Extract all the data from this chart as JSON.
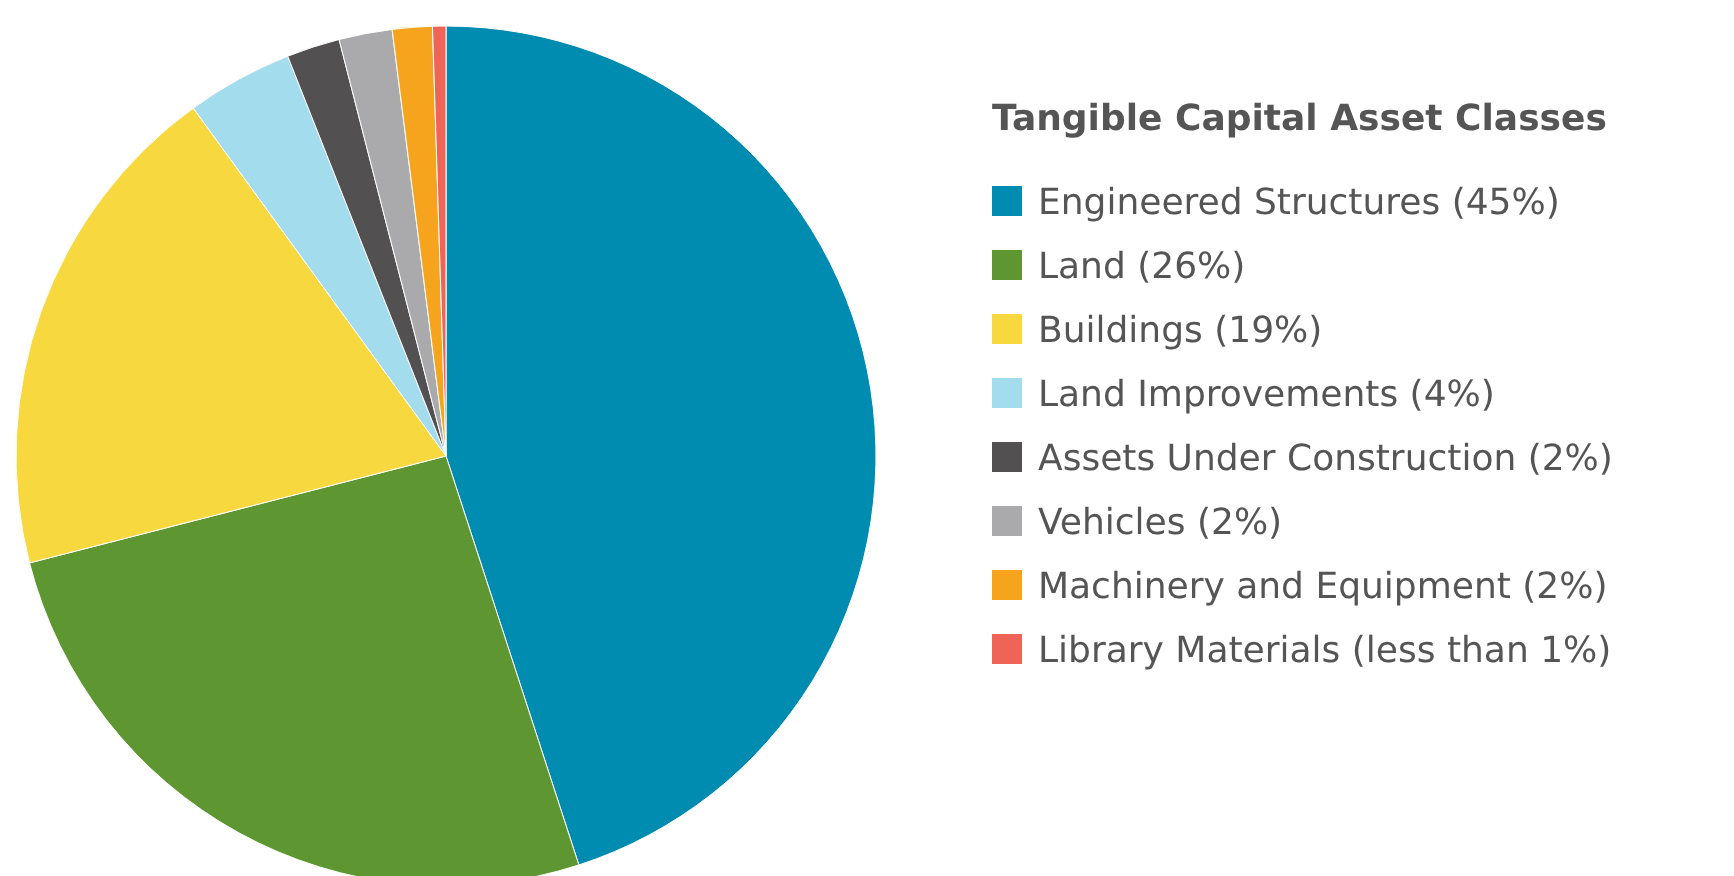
{
  "chart_data": {
    "type": "pie",
    "legend_title": "Tangible Capital Asset Classes",
    "legend": "right",
    "categories": [
      "Engineered Structures (45%)",
      "Land (26%)",
      "Buildings (19%)",
      "Land Improvements (4%)",
      "Assets Under Construction (2%)",
      "Vehicles (2%)",
      "Machinery and Equipment (2%)",
      "Library Materials (less than 1%)"
    ],
    "values": [
      45,
      26,
      19,
      4,
      2,
      2,
      1.5,
      0.5
    ],
    "colors": [
      "#008cb0",
      "#5e9732",
      "#f7d83e",
      "#a3dcec",
      "#525051",
      "#aaaaac",
      "#f6a31e",
      "#ee6457"
    ]
  }
}
